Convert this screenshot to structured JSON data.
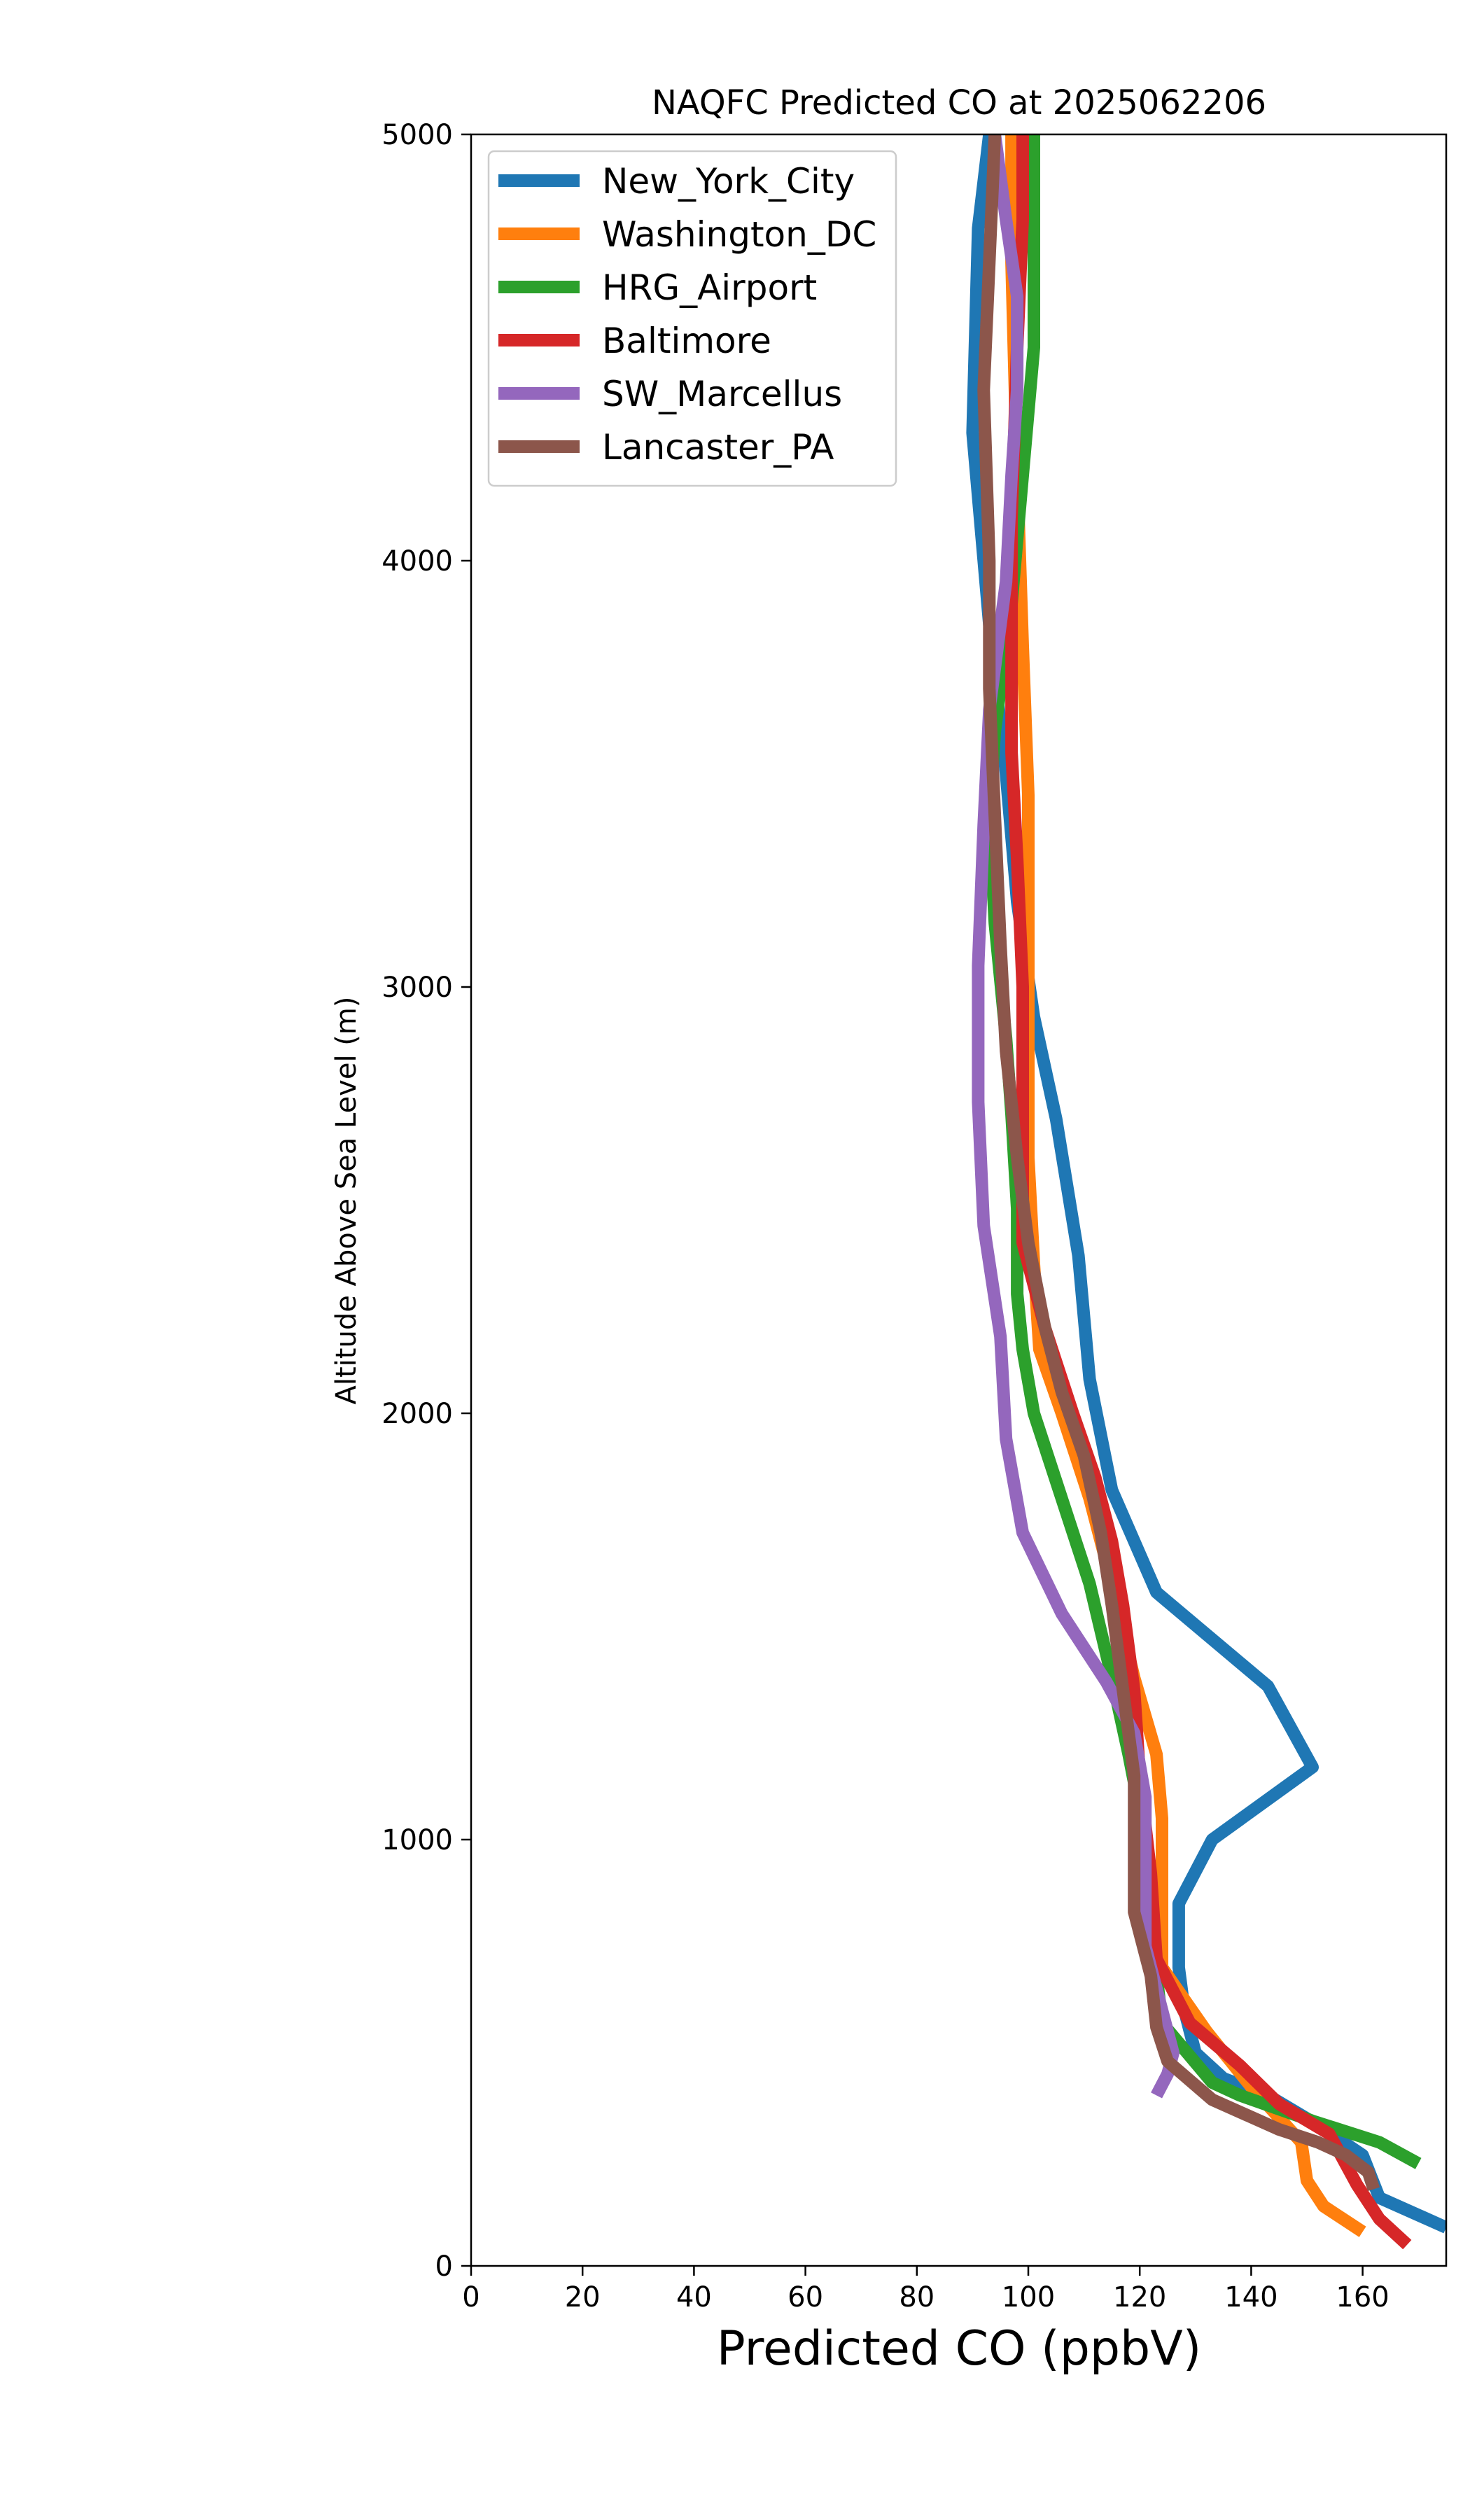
{
  "chart_data": {
    "type": "line",
    "title": "NAQFC Predicted CO at 2025062206",
    "xlabel": "Predicted CO (ppbV)",
    "ylabel": "Altitude Above Sea Level (m)",
    "xlim": [
      0,
      175
    ],
    "ylim": [
      0,
      5000
    ],
    "xticks": [
      0,
      20,
      40,
      60,
      80,
      100,
      120,
      140,
      160
    ],
    "yticks": [
      0,
      1000,
      2000,
      3000,
      4000,
      5000
    ],
    "grid": false,
    "legend_position": "top-left",
    "series": [
      {
        "name": "New_York_City",
        "color": "#1f77b4",
        "points": [
          [
            175,
            90
          ],
          [
            163,
            160
          ],
          [
            160,
            260
          ],
          [
            152,
            330
          ],
          [
            143,
            400
          ],
          [
            135,
            440
          ],
          [
            130,
            500
          ],
          [
            128,
            600
          ],
          [
            127,
            700
          ],
          [
            127,
            850
          ],
          [
            133,
            1000
          ],
          [
            151,
            1170
          ],
          [
            143,
            1360
          ],
          [
            123,
            1580
          ],
          [
            115,
            1820
          ],
          [
            111,
            2080
          ],
          [
            109,
            2370
          ],
          [
            105,
            2690
          ],
          [
            101,
            2930
          ],
          [
            98,
            3200
          ],
          [
            96,
            3500
          ],
          [
            93,
            3850
          ],
          [
            90,
            4300
          ],
          [
            91,
            4780
          ],
          [
            93,
            5000
          ]
        ]
      },
      {
        "name": "Washington_DC",
        "color": "#ff7f0e",
        "points": [
          [
            160,
            80
          ],
          [
            153,
            140
          ],
          [
            150,
            200
          ],
          [
            149,
            290
          ],
          [
            140,
            420
          ],
          [
            132,
            550
          ],
          [
            124,
            700
          ],
          [
            124,
            900
          ],
          [
            124,
            1050
          ],
          [
            123,
            1200
          ],
          [
            119,
            1380
          ],
          [
            115,
            1600
          ],
          [
            111,
            1800
          ],
          [
            106,
            2000
          ],
          [
            102,
            2150
          ],
          [
            101,
            2350
          ],
          [
            100,
            2600
          ],
          [
            100,
            3000
          ],
          [
            100,
            3450
          ],
          [
            99,
            3800
          ],
          [
            98,
            4200
          ],
          [
            97,
            4700
          ],
          [
            97,
            5000
          ]
        ]
      },
      {
        "name": "HRG_Airport",
        "color": "#2ca02c",
        "points": [
          [
            170,
            240
          ],
          [
            163,
            290
          ],
          [
            151,
            340
          ],
          [
            138,
            400
          ],
          [
            133,
            430
          ],
          [
            124,
            570
          ],
          [
            122,
            800
          ],
          [
            121,
            1000
          ],
          [
            118,
            1200
          ],
          [
            115,
            1380
          ],
          [
            111,
            1600
          ],
          [
            106,
            1800
          ],
          [
            101,
            2000
          ],
          [
            99,
            2150
          ],
          [
            98,
            2280
          ],
          [
            98,
            2480
          ],
          [
            97,
            2700
          ],
          [
            96,
            2880
          ],
          [
            94,
            3150
          ],
          [
            93,
            3400
          ],
          [
            94,
            3600
          ],
          [
            97,
            3900
          ],
          [
            99,
            4200
          ],
          [
            101,
            4500
          ],
          [
            101,
            4800
          ],
          [
            101,
            5000
          ]
        ]
      },
      {
        "name": "Baltimore",
        "color": "#d62728",
        "points": [
          [
            168,
            50
          ],
          [
            163,
            110
          ],
          [
            159,
            190
          ],
          [
            154,
            310
          ],
          [
            145,
            380
          ],
          [
            138,
            470
          ],
          [
            129,
            570
          ],
          [
            123,
            720
          ],
          [
            122,
            920
          ],
          [
            120,
            1150
          ],
          [
            119,
            1350
          ],
          [
            117,
            1550
          ],
          [
            115,
            1700
          ],
          [
            112,
            1850
          ],
          [
            108,
            2000
          ],
          [
            103,
            2200
          ],
          [
            99,
            2400
          ],
          [
            99,
            2700
          ],
          [
            99,
            3000
          ],
          [
            98,
            3300
          ],
          [
            97,
            3550
          ],
          [
            97,
            3800
          ],
          [
            97,
            4100
          ],
          [
            98,
            4500
          ],
          [
            99,
            4800
          ],
          [
            99,
            5000
          ]
        ]
      },
      {
        "name": "SW_Marcellus",
        "color": "#9467bd",
        "points": [
          [
            123,
            400
          ],
          [
            125,
            450
          ],
          [
            126,
            500
          ],
          [
            124,
            600
          ],
          [
            121,
            750
          ],
          [
            121,
            850
          ],
          [
            121,
            950
          ],
          [
            121,
            1100
          ],
          [
            119,
            1250
          ],
          [
            114,
            1370
          ],
          [
            106,
            1530
          ],
          [
            99,
            1720
          ],
          [
            96,
            1940
          ],
          [
            95,
            2180
          ],
          [
            92,
            2440
          ],
          [
            91,
            2730
          ],
          [
            91,
            3050
          ],
          [
            92,
            3380
          ],
          [
            93,
            3650
          ],
          [
            96,
            3950
          ],
          [
            97,
            4200
          ],
          [
            98,
            4400
          ],
          [
            98,
            4620
          ],
          [
            96,
            4800
          ],
          [
            94,
            5000
          ]
        ]
      },
      {
        "name": "Lancaster_PA",
        "color": "#8c564b",
        "points": [
          [
            162,
            180
          ],
          [
            161,
            220
          ],
          [
            157,
            260
          ],
          [
            152,
            290
          ],
          [
            145,
            320
          ],
          [
            133,
            390
          ],
          [
            125,
            480
          ],
          [
            123,
            560
          ],
          [
            122,
            680
          ],
          [
            119,
            830
          ],
          [
            119,
            950
          ],
          [
            119,
            1150
          ],
          [
            117,
            1350
          ],
          [
            115,
            1550
          ],
          [
            113,
            1720
          ],
          [
            110,
            1900
          ],
          [
            106,
            2050
          ],
          [
            103,
            2200
          ],
          [
            100,
            2400
          ],
          [
            98,
            2600
          ],
          [
            96,
            2850
          ],
          [
            95,
            3100
          ],
          [
            94,
            3400
          ],
          [
            93,
            3700
          ],
          [
            93,
            4000
          ],
          [
            92,
            4400
          ],
          [
            93,
            4700
          ],
          [
            94,
            5000
          ]
        ]
      }
    ]
  }
}
